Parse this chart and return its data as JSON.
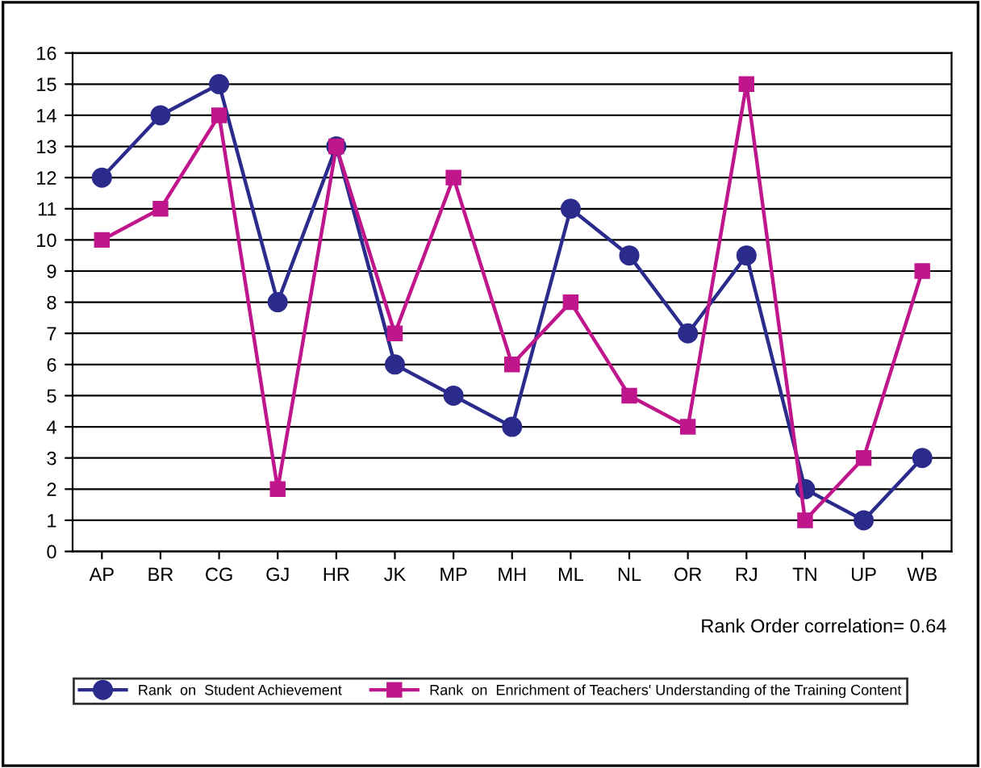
{
  "chart_data": {
    "type": "line",
    "categories": [
      "AP",
      "BR",
      "CG",
      "GJ",
      "HR",
      "JK",
      "MP",
      "MH",
      "ML",
      "NL",
      "OR",
      "RJ",
      "TN",
      "UP",
      "WB"
    ],
    "series": [
      {
        "name": "Rank  on  Student Achievement",
        "color": "#2b2b8c",
        "marker": "circle",
        "values": [
          12,
          14,
          15,
          8,
          13,
          6,
          5,
          4,
          11,
          9.5,
          7,
          9.5,
          2,
          1,
          3
        ]
      },
      {
        "name": "Rank  on  Enrichment of Teachers' Understanding of the Training Content",
        "color": "#c0168c",
        "marker": "square",
        "values": [
          10,
          11,
          14,
          2,
          13,
          7,
          12,
          6,
          8,
          5,
          4,
          15,
          1,
          3,
          9
        ]
      }
    ],
    "ylim": [
      0,
      16
    ],
    "yticks": [
      0,
      1,
      2,
      3,
      4,
      5,
      6,
      7,
      8,
      9,
      10,
      11,
      12,
      13,
      14,
      15,
      16
    ],
    "grid": "y",
    "legend": "bottom",
    "line_style": "solid",
    "annotations": [
      "Rank Order correlation= 0.64"
    ]
  }
}
